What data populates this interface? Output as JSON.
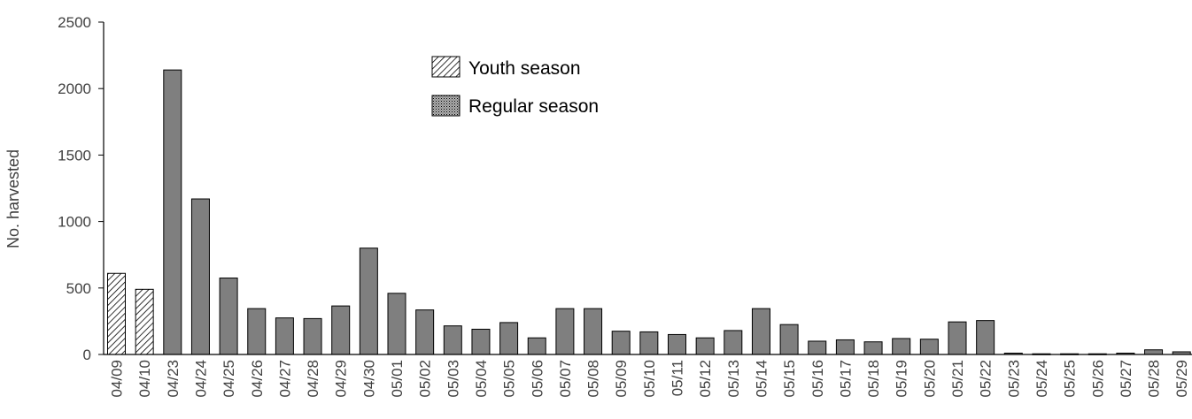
{
  "chart_data": {
    "type": "bar",
    "title": "",
    "xlabel": "",
    "ylabel": "No. harvested",
    "ylim": [
      0,
      2500
    ],
    "yticks": [
      0,
      500,
      1000,
      1500,
      2000,
      2500
    ],
    "grid": false,
    "legend_position": "top-center",
    "categories": [
      "04/09",
      "04/10",
      "04/23",
      "04/24",
      "04/25",
      "04/26",
      "04/27",
      "04/28",
      "04/29",
      "04/30",
      "05/01",
      "05/02",
      "05/03",
      "05/04",
      "05/05",
      "05/06",
      "05/07",
      "05/08",
      "05/09",
      "05/10",
      "05/11",
      "05/12",
      "05/13",
      "05/14",
      "05/15",
      "05/16",
      "05/17",
      "05/18",
      "05/19",
      "05/20",
      "05/21",
      "05/22",
      "05/23",
      "05/24",
      "05/25",
      "05/26",
      "05/27",
      "05/28",
      "05/29"
    ],
    "series": [
      {
        "name": "Youth season",
        "pattern": "diagonal-hatch",
        "color": "#ffffff",
        "values": [
          610,
          490,
          null,
          null,
          null,
          null,
          null,
          null,
          null,
          null,
          null,
          null,
          null,
          null,
          null,
          null,
          null,
          null,
          null,
          null,
          null,
          null,
          null,
          null,
          null,
          null,
          null,
          null,
          null,
          null,
          null,
          null,
          null,
          null,
          null,
          null,
          null,
          null,
          null
        ]
      },
      {
        "name": "Regular season",
        "pattern": "solid-gray",
        "color": "#7f7f7f",
        "values": [
          null,
          null,
          2140,
          1170,
          575,
          345,
          275,
          270,
          365,
          800,
          460,
          335,
          215,
          190,
          240,
          125,
          345,
          345,
          175,
          170,
          150,
          125,
          180,
          345,
          225,
          100,
          110,
          95,
          120,
          115,
          245,
          255,
          10,
          5,
          5,
          5,
          10,
          35,
          20
        ]
      }
    ]
  }
}
